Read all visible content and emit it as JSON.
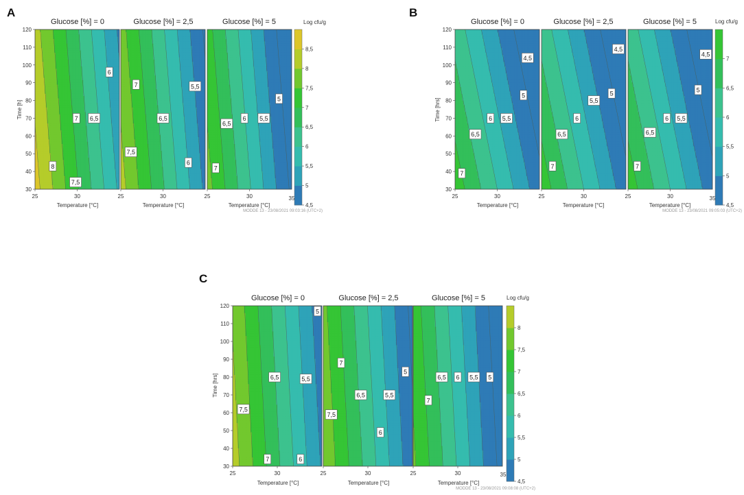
{
  "palette": {
    "levels": [
      "#2e7bb6",
      "#2ea3b8",
      "#35bcae",
      "#3cc28e",
      "#33bf5a",
      "#35c535",
      "#72c82e",
      "#b5cc2a",
      "#dcc62a",
      "#dfa725",
      "#e0791f",
      "#de4426",
      "#d22227"
    ],
    "frame": "#444444",
    "contour_line": "#4d5a4d"
  },
  "chart_data": [
    {
      "type": "contour",
      "panel_label": "A",
      "legend_title": "Log cfu/g",
      "ylabel": "Time [h]",
      "xlabel": "Temperature [°C]",
      "xlim": [
        25,
        35
      ],
      "ylim": [
        30,
        120
      ],
      "x_ticks": [
        25,
        30
      ],
      "x_tick_labels": [
        "25",
        "30"
      ],
      "last_x_tick_label": "35",
      "y_ticks": [
        30,
        40,
        50,
        60,
        70,
        80,
        90,
        100,
        110,
        120
      ],
      "y_tick_labels": [
        "30",
        "40",
        "50",
        "60",
        "70",
        "80",
        "90",
        "100",
        "110",
        "120"
      ],
      "colorbar_range": [
        4.5,
        9
      ],
      "colorbar_ticks": [
        4.5,
        5,
        5.5,
        6,
        6.5,
        7,
        7.5,
        8,
        8.5
      ],
      "colorbar_tick_labels": [
        "4,5",
        "5",
        "5,5",
        "6",
        "6,5",
        "7",
        "7,5",
        "8",
        "8,5"
      ],
      "footer": "MODDE 13 - 23/08/2021 09:03:16 (UTC+2)",
      "panels": [
        {
          "title": "Glucose [%] = 0",
          "model": {
            "z0": 8.7,
            "slope_x": -0.33,
            "slope_y": -0.0055
          },
          "labels": [
            {
              "text": "6",
              "x": 33.8,
              "y": 96
            },
            {
              "text": "7",
              "x": 29.9,
              "y": 70
            },
            {
              "text": "6,5",
              "x": 32.0,
              "y": 70
            },
            {
              "text": "8",
              "x": 27.1,
              "y": 43
            },
            {
              "text": "7,5",
              "x": 29.8,
              "y": 34
            }
          ]
        },
        {
          "title": "Glucose [%] = 2,5",
          "model": {
            "z0": 8.2,
            "slope_x": -0.33,
            "slope_y": -0.0055
          },
          "labels": [
            {
              "text": "7",
              "x": 26.8,
              "y": 89
            },
            {
              "text": "5,5",
              "x": 33.8,
              "y": 88
            },
            {
              "text": "6,5",
              "x": 30.0,
              "y": 70
            },
            {
              "text": "7,5",
              "x": 26.2,
              "y": 51
            },
            {
              "text": "6",
              "x": 33.0,
              "y": 45
            }
          ]
        },
        {
          "title": "Glucose [%] = 5",
          "model": {
            "z0": 7.7,
            "slope_x": -0.33,
            "slope_y": -0.0055
          },
          "labels": [
            {
              "text": "5",
              "x": 33.5,
              "y": 81
            },
            {
              "text": "6,5",
              "x": 27.3,
              "y": 67
            },
            {
              "text": "6",
              "x": 29.4,
              "y": 70
            },
            {
              "text": "5,5",
              "x": 31.7,
              "y": 70
            },
            {
              "text": "7",
              "x": 26.0,
              "y": 42
            }
          ]
        }
      ]
    },
    {
      "type": "contour",
      "panel_label": "B",
      "legend_title": "Log cfu/g",
      "ylabel": "Time [hrs]",
      "xlabel": "Temperature [°C]",
      "xlim": [
        25,
        35
      ],
      "ylim": [
        30,
        120
      ],
      "x_ticks": [
        25,
        30
      ],
      "x_tick_labels": [
        "25",
        "30"
      ],
      "last_x_tick_label": "35",
      "y_ticks": [
        30,
        40,
        50,
        60,
        70,
        80,
        90,
        100,
        110,
        120
      ],
      "y_tick_labels": [
        "30",
        "40",
        "50",
        "60",
        "70",
        "80",
        "90",
        "100",
        "110",
        "120"
      ],
      "colorbar_range": [
        4.5,
        7.5
      ],
      "colorbar_ticks": [
        4.5,
        5,
        5.5,
        6,
        6.5,
        7
      ],
      "colorbar_tick_labels": [
        "4,5",
        "5",
        "5,5",
        "6",
        "6,5",
        "7"
      ],
      "footer": "MODDE 13 - 23/08/2021 09:05:03 (UTC+2)",
      "panels": [
        {
          "title": "Glucose [%] = 0",
          "model": {
            "z0": 7.3,
            "slope_x": -0.26,
            "slope_y": -0.011
          },
          "labels": [
            {
              "text": "4,5",
              "x": 33.6,
              "y": 104
            },
            {
              "text": "5",
              "x": 33.1,
              "y": 83
            },
            {
              "text": "6",
              "x": 29.2,
              "y": 70
            },
            {
              "text": "5,5",
              "x": 31.1,
              "y": 70
            },
            {
              "text": "6,5",
              "x": 27.4,
              "y": 61
            },
            {
              "text": "7",
              "x": 25.8,
              "y": 39
            }
          ]
        },
        {
          "title": "Glucose [%] = 2,5",
          "model": {
            "z0": 7.3,
            "slope_x": -0.26,
            "slope_y": -0.011
          },
          "labels": [
            {
              "text": "4,5",
              "x": 34.1,
              "y": 109
            },
            {
              "text": "5",
              "x": 33.3,
              "y": 84
            },
            {
              "text": "5,5",
              "x": 31.2,
              "y": 80
            },
            {
              "text": "6",
              "x": 29.2,
              "y": 70
            },
            {
              "text": "6,5",
              "x": 27.4,
              "y": 61
            },
            {
              "text": "7",
              "x": 26.3,
              "y": 43
            }
          ]
        },
        {
          "title": "Glucose [%] = 5",
          "model": {
            "z0": 7.3,
            "slope_x": -0.26,
            "slope_y": -0.011
          },
          "labels": [
            {
              "text": "4,5",
              "x": 34.2,
              "y": 106
            },
            {
              "text": "5",
              "x": 33.3,
              "y": 86
            },
            {
              "text": "6",
              "x": 29.6,
              "y": 70
            },
            {
              "text": "5,5",
              "x": 31.3,
              "y": 70
            },
            {
              "text": "6,5",
              "x": 27.6,
              "y": 62
            },
            {
              "text": "7",
              "x": 26.1,
              "y": 43
            }
          ]
        }
      ]
    },
    {
      "type": "contour",
      "panel_label": "C",
      "legend_title": "Log cfu/g",
      "ylabel": "Time [hrs]",
      "xlabel": "Temperature [°C]",
      "xlim": [
        25,
        35
      ],
      "ylim": [
        30,
        120
      ],
      "x_ticks": [
        25,
        30
      ],
      "x_tick_labels": [
        "25",
        "30"
      ],
      "last_x_tick_label": "35",
      "y_ticks": [
        30,
        40,
        50,
        60,
        70,
        80,
        90,
        100,
        110,
        120
      ],
      "y_tick_labels": [
        "30",
        "40",
        "50",
        "60",
        "70",
        "80",
        "90",
        "100",
        "110",
        "120"
      ],
      "colorbar_range": [
        4.5,
        8.5
      ],
      "colorbar_ticks": [
        4.5,
        5,
        5.5,
        6,
        6.5,
        7,
        7.5,
        8
      ],
      "colorbar_tick_labels": [
        "4,5",
        "5",
        "5,5",
        "6",
        "6,5",
        "7",
        "7,5",
        "8"
      ],
      "footer": "MODDE 13 - 23/08/2021 09:08:08 (UTC+2)",
      "panels": [
        {
          "title": "Glucose [%] = 0",
          "model": {
            "z0": 8.25,
            "slope_x": -0.33,
            "slope_y": -0.0035
          },
          "labels": [
            {
              "text": "5",
              "x": 34.5,
              "y": 117
            },
            {
              "text": "6,5",
              "x": 29.7,
              "y": 80
            },
            {
              "text": "5,5",
              "x": 33.2,
              "y": 79
            },
            {
              "text": "7,5",
              "x": 26.2,
              "y": 62
            },
            {
              "text": "7",
              "x": 28.9,
              "y": 34
            },
            {
              "text": "6",
              "x": 32.6,
              "y": 34
            }
          ]
        },
        {
          "title": "Glucose [%] = 2,5",
          "model": {
            "z0": 7.95,
            "slope_x": -0.33,
            "slope_y": -0.0035
          },
          "labels": [
            {
              "text": "7",
              "x": 27.0,
              "y": 88
            },
            {
              "text": "5",
              "x": 34.2,
              "y": 83
            },
            {
              "text": "6,5",
              "x": 29.2,
              "y": 70
            },
            {
              "text": "5,5",
              "x": 32.4,
              "y": 70
            },
            {
              "text": "7,5",
              "x": 25.9,
              "y": 59
            },
            {
              "text": "6",
              "x": 31.4,
              "y": 49
            }
          ]
        },
        {
          "title": "Glucose [%] = 5",
          "model": {
            "z0": 7.6,
            "slope_x": -0.33,
            "slope_y": -0.0035
          },
          "labels": [
            {
              "text": "6,5",
              "x": 28.2,
              "y": 80
            },
            {
              "text": "6",
              "x": 30.0,
              "y": 80
            },
            {
              "text": "5,5",
              "x": 31.8,
              "y": 80
            },
            {
              "text": "5",
              "x": 33.6,
              "y": 80
            },
            {
              "text": "7",
              "x": 26.7,
              "y": 67
            }
          ]
        }
      ]
    }
  ]
}
